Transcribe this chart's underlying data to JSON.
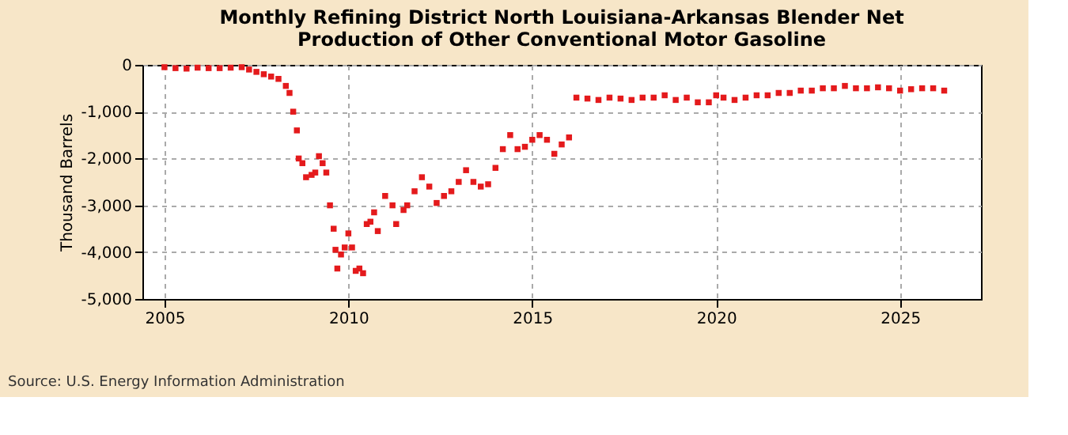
{
  "chart_data": {
    "type": "scatter",
    "title": "Monthly Refining District North Louisiana-Arkansas Blender Net Production of Other Conventional Motor Gasoline",
    "ylabel": "Thousand Barrels",
    "annotations": [
      "Source: U.S. Energy Information Administration"
    ],
    "x": [
      2005.0,
      2005.3,
      2005.6,
      2005.9,
      2006.2,
      2006.5,
      2006.8,
      2007.1,
      2007.3,
      2007.5,
      2007.7,
      2007.9,
      2008.1,
      2008.3,
      2008.4,
      2008.5,
      2008.6,
      2008.65,
      2008.75,
      2008.85,
      2009.0,
      2009.1,
      2009.2,
      2009.3,
      2009.4,
      2009.5,
      2009.6,
      2009.65,
      2009.7,
      2009.8,
      2009.9,
      2010.0,
      2010.1,
      2010.2,
      2010.3,
      2010.4,
      2010.5,
      2010.6,
      2010.7,
      2010.8,
      2011.0,
      2011.2,
      2011.3,
      2011.5,
      2011.6,
      2011.8,
      2012.0,
      2012.2,
      2012.4,
      2012.6,
      2012.8,
      2013.0,
      2013.2,
      2013.4,
      2013.6,
      2013.8,
      2014.0,
      2014.2,
      2014.4,
      2014.6,
      2014.8,
      2015.0,
      2015.2,
      2015.4,
      2015.6,
      2015.8,
      2016.0,
      2016.2,
      2016.5,
      2016.8,
      2017.1,
      2017.4,
      2017.7,
      2018.0,
      2018.3,
      2018.6,
      2018.9,
      2019.2,
      2019.5,
      2019.8,
      2020.0,
      2020.2,
      2020.5,
      2020.8,
      2021.1,
      2021.4,
      2021.7,
      2022.0,
      2022.3,
      2022.6,
      2022.9,
      2023.2,
      2023.5,
      2023.8,
      2024.1,
      2024.4,
      2024.7,
      2025.0,
      2025.3,
      2025.6,
      2025.9,
      2026.2
    ],
    "values": [
      -50,
      -70,
      -80,
      -60,
      -70,
      -70,
      -60,
      -50,
      -100,
      -150,
      -200,
      -250,
      -300,
      -450,
      -600,
      -1000,
      -1400,
      -2000,
      -2100,
      -2400,
      -2350,
      -2300,
      -1950,
      -2100,
      -2300,
      -3000,
      -3500,
      -3950,
      -4350,
      -4050,
      -3900,
      -3600,
      -3900,
      -4400,
      -4350,
      -4450,
      -3400,
      -3350,
      -3150,
      -3550,
      -2800,
      -3000,
      -3400,
      -3100,
      -3000,
      -2700,
      -2400,
      -2600,
      -2950,
      -2800,
      -2700,
      -2500,
      -2250,
      -2500,
      -2600,
      -2550,
      -2200,
      -1800,
      -1500,
      -1800,
      -1750,
      -1600,
      -1500,
      -1600,
      -1900,
      -1700,
      -1550,
      -700,
      -720,
      -750,
      -700,
      -720,
      -750,
      -700,
      -700,
      -650,
      -750,
      -700,
      -800,
      -800,
      -650,
      -700,
      -750,
      -700,
      -650,
      -650,
      -600,
      -600,
      -550,
      -550,
      -500,
      -500,
      -450,
      -500,
      -500,
      -480,
      -500,
      -550,
      -520,
      -500,
      -500,
      -550
    ],
    "color": "#e41a1c",
    "marker": "square",
    "grid": true,
    "xlim": [
      2004.4,
      2027.2
    ],
    "xticks": [
      2005,
      2010,
      2015,
      2020,
      2025
    ],
    "ylim": [
      -5000,
      0
    ],
    "yticks": [
      0,
      {
        "value": -1000,
        "label": "-1,000"
      },
      {
        "value": -2000,
        "label": "-2,000"
      },
      {
        "value": -3000,
        "label": "-3,000"
      },
      {
        "value": -4000,
        "label": "-4,000"
      },
      {
        "value": -5000,
        "label": "-5,000"
      }
    ]
  }
}
